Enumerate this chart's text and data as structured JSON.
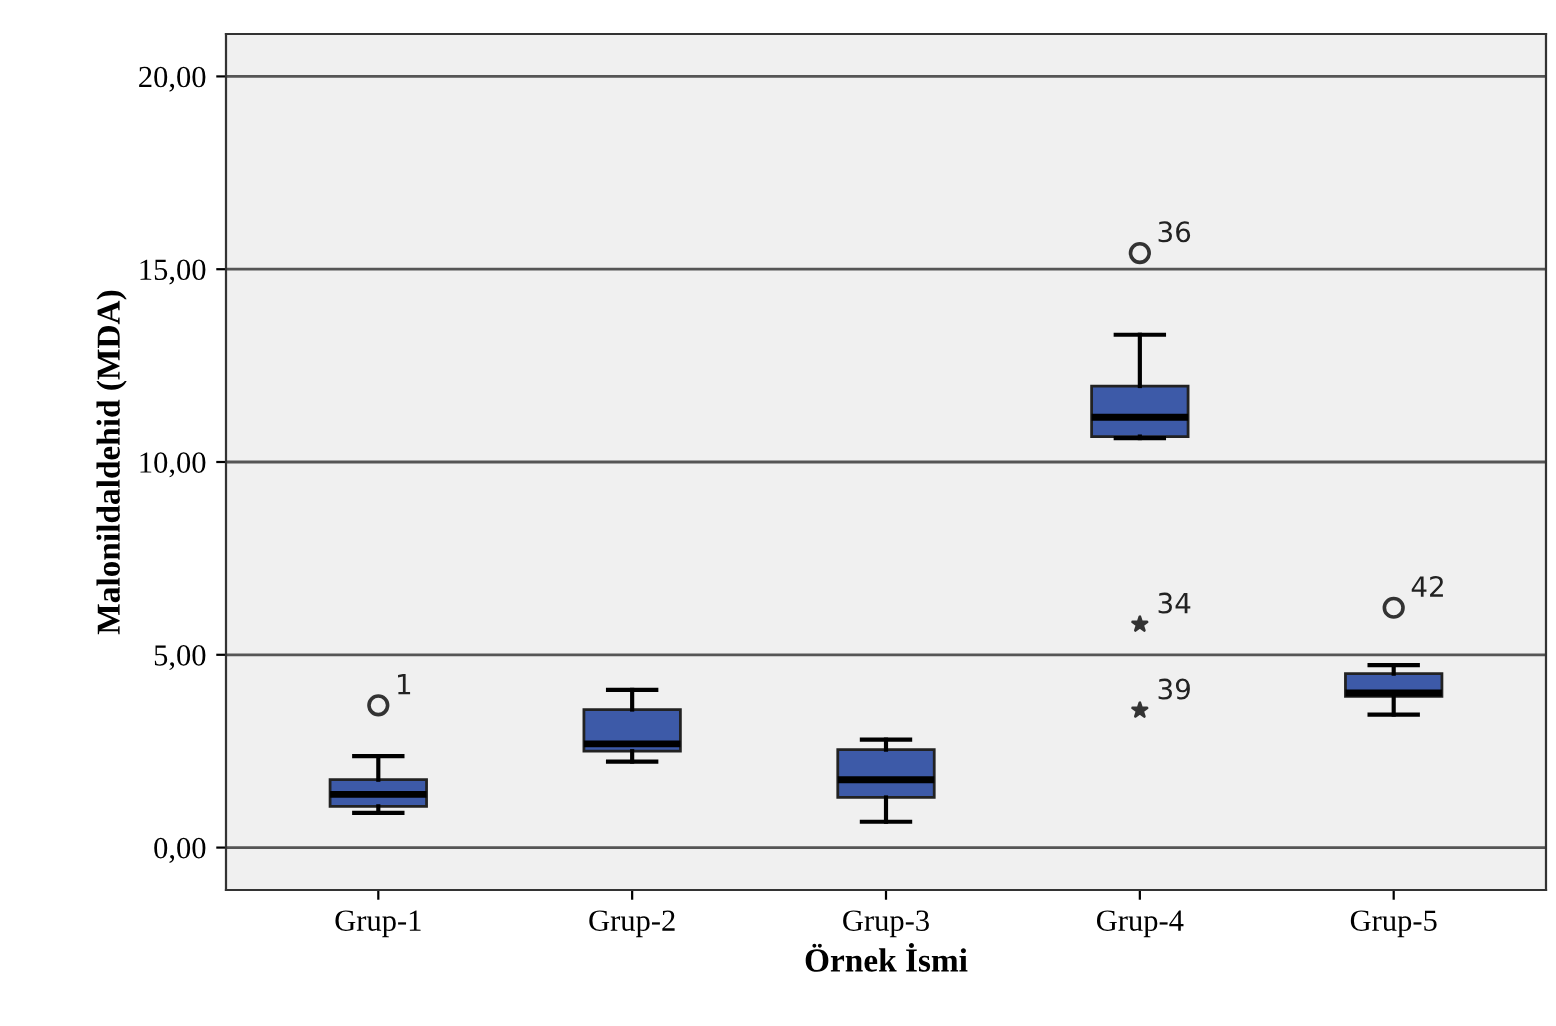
{
  "chart_data": {
    "type": "box",
    "xlabel": "Örnek İsmi",
    "ylabel": "Malonildaldehid (MDA)",
    "categories": [
      "Grup-1",
      "Grup-2",
      "Grup-3",
      "Grup-4",
      "Grup-5"
    ],
    "series": [
      {
        "color": "#3d5aa8",
        "boxes": [
          {
            "low": 0.9,
            "q1": 1.07,
            "median": 1.38,
            "q3": 1.76,
            "high": 2.37
          },
          {
            "low": 2.23,
            "q1": 2.5,
            "median": 2.69,
            "q3": 3.58,
            "high": 4.09
          },
          {
            "low": 0.67,
            "q1": 1.3,
            "median": 1.76,
            "q3": 2.54,
            "high": 2.8
          },
          {
            "low": 10.62,
            "q1": 10.66,
            "median": 11.16,
            "q3": 11.97,
            "high": 13.3
          },
          {
            "low": 3.45,
            "q1": 3.92,
            "median": 4.01,
            "q3": 4.51,
            "high": 4.73
          }
        ]
      },
      {
        "type": "scatter",
        "color": "#333333",
        "marker": "circle",
        "x": [
          "Grup-1",
          "Grup-4",
          "Grup-5"
        ],
        "values": [
          3.69,
          15.42,
          6.22
        ]
      },
      {
        "type": "scatter",
        "color": "#333333",
        "marker": "star",
        "x": [
          "Grup-4",
          "Grup-4"
        ],
        "values": [
          5.79,
          3.56
        ]
      }
    ],
    "annotations": [
      {
        "text": "1",
        "x": "Grup-1",
        "y": 3.69
      },
      {
        "text": "36",
        "x": "Grup-4",
        "y": 15.42
      },
      {
        "text": "34",
        "x": "Grup-4",
        "y": 5.79
      },
      {
        "text": "39",
        "x": "Grup-4",
        "y": 3.56
      },
      {
        "text": "42",
        "x": "Grup-5",
        "y": 6.22
      }
    ],
    "ylim": [
      -1.1,
      21.1
    ],
    "yticks": [
      {
        "value": 0,
        "label": "0,00"
      },
      {
        "value": 5,
        "label": "5,00"
      },
      {
        "value": 10,
        "label": "10,00"
      },
      {
        "value": 15,
        "label": "15,00"
      },
      {
        "value": 20,
        "label": "20,00"
      }
    ],
    "grid": "y"
  }
}
